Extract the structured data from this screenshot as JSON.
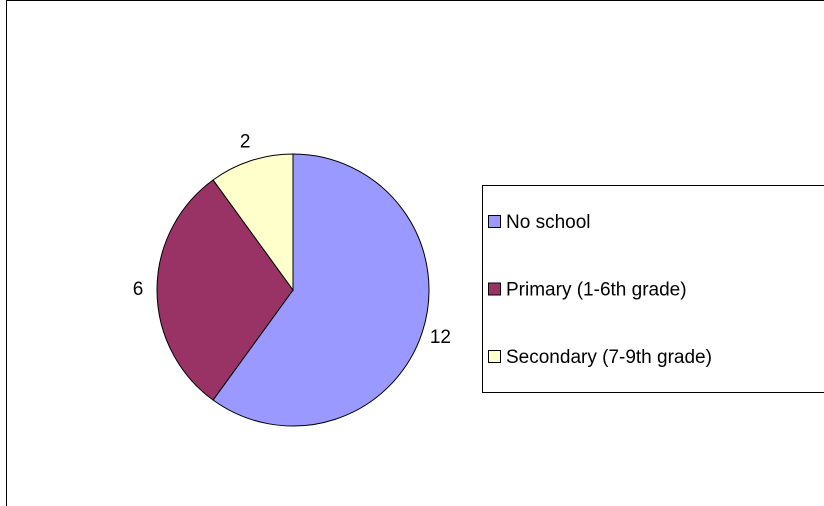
{
  "chart_data": {
    "type": "pie",
    "categories": [
      "No school",
      "Primary (1-6th grade)",
      "Secondary (7-9th grade)"
    ],
    "values": [
      12,
      6,
      2
    ],
    "colors": [
      "#9999ff",
      "#993366",
      "#ffffcc"
    ],
    "legend": "right"
  }
}
